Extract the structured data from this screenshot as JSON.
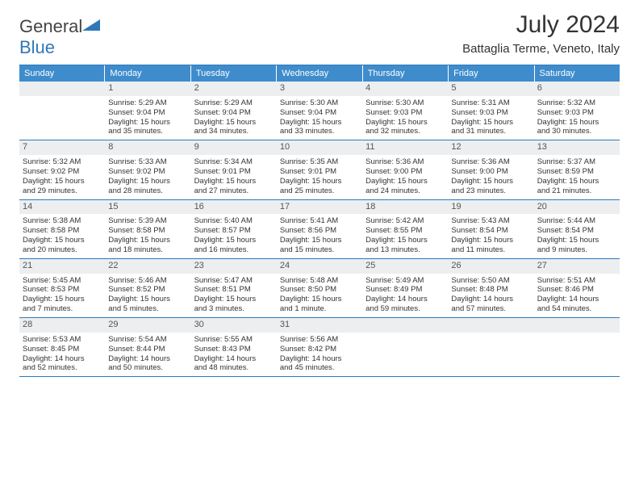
{
  "logo": {
    "text1": "General",
    "text2": "Blue",
    "color1": "#555",
    "color2": "#2f78b8"
  },
  "title": "July 2024",
  "location": "Battaglia Terme, Veneto, Italy",
  "colors": {
    "headerBg": "#3e8ccc",
    "border": "#2c7bbf",
    "dayNumBg": "#eceeef"
  },
  "weekdays": [
    "Sunday",
    "Monday",
    "Tuesday",
    "Wednesday",
    "Thursday",
    "Friday",
    "Saturday"
  ],
  "weeks": [
    [
      {
        "n": "",
        "sunrise": "",
        "sunset": "",
        "daylight1": "",
        "daylight2": ""
      },
      {
        "n": "1",
        "sunrise": "Sunrise: 5:29 AM",
        "sunset": "Sunset: 9:04 PM",
        "daylight1": "Daylight: 15 hours",
        "daylight2": "and 35 minutes."
      },
      {
        "n": "2",
        "sunrise": "Sunrise: 5:29 AM",
        "sunset": "Sunset: 9:04 PM",
        "daylight1": "Daylight: 15 hours",
        "daylight2": "and 34 minutes."
      },
      {
        "n": "3",
        "sunrise": "Sunrise: 5:30 AM",
        "sunset": "Sunset: 9:04 PM",
        "daylight1": "Daylight: 15 hours",
        "daylight2": "and 33 minutes."
      },
      {
        "n": "4",
        "sunrise": "Sunrise: 5:30 AM",
        "sunset": "Sunset: 9:03 PM",
        "daylight1": "Daylight: 15 hours",
        "daylight2": "and 32 minutes."
      },
      {
        "n": "5",
        "sunrise": "Sunrise: 5:31 AM",
        "sunset": "Sunset: 9:03 PM",
        "daylight1": "Daylight: 15 hours",
        "daylight2": "and 31 minutes."
      },
      {
        "n": "6",
        "sunrise": "Sunrise: 5:32 AM",
        "sunset": "Sunset: 9:03 PM",
        "daylight1": "Daylight: 15 hours",
        "daylight2": "and 30 minutes."
      }
    ],
    [
      {
        "n": "7",
        "sunrise": "Sunrise: 5:32 AM",
        "sunset": "Sunset: 9:02 PM",
        "daylight1": "Daylight: 15 hours",
        "daylight2": "and 29 minutes."
      },
      {
        "n": "8",
        "sunrise": "Sunrise: 5:33 AM",
        "sunset": "Sunset: 9:02 PM",
        "daylight1": "Daylight: 15 hours",
        "daylight2": "and 28 minutes."
      },
      {
        "n": "9",
        "sunrise": "Sunrise: 5:34 AM",
        "sunset": "Sunset: 9:01 PM",
        "daylight1": "Daylight: 15 hours",
        "daylight2": "and 27 minutes."
      },
      {
        "n": "10",
        "sunrise": "Sunrise: 5:35 AM",
        "sunset": "Sunset: 9:01 PM",
        "daylight1": "Daylight: 15 hours",
        "daylight2": "and 25 minutes."
      },
      {
        "n": "11",
        "sunrise": "Sunrise: 5:36 AM",
        "sunset": "Sunset: 9:00 PM",
        "daylight1": "Daylight: 15 hours",
        "daylight2": "and 24 minutes."
      },
      {
        "n": "12",
        "sunrise": "Sunrise: 5:36 AM",
        "sunset": "Sunset: 9:00 PM",
        "daylight1": "Daylight: 15 hours",
        "daylight2": "and 23 minutes."
      },
      {
        "n": "13",
        "sunrise": "Sunrise: 5:37 AM",
        "sunset": "Sunset: 8:59 PM",
        "daylight1": "Daylight: 15 hours",
        "daylight2": "and 21 minutes."
      }
    ],
    [
      {
        "n": "14",
        "sunrise": "Sunrise: 5:38 AM",
        "sunset": "Sunset: 8:58 PM",
        "daylight1": "Daylight: 15 hours",
        "daylight2": "and 20 minutes."
      },
      {
        "n": "15",
        "sunrise": "Sunrise: 5:39 AM",
        "sunset": "Sunset: 8:58 PM",
        "daylight1": "Daylight: 15 hours",
        "daylight2": "and 18 minutes."
      },
      {
        "n": "16",
        "sunrise": "Sunrise: 5:40 AM",
        "sunset": "Sunset: 8:57 PM",
        "daylight1": "Daylight: 15 hours",
        "daylight2": "and 16 minutes."
      },
      {
        "n": "17",
        "sunrise": "Sunrise: 5:41 AM",
        "sunset": "Sunset: 8:56 PM",
        "daylight1": "Daylight: 15 hours",
        "daylight2": "and 15 minutes."
      },
      {
        "n": "18",
        "sunrise": "Sunrise: 5:42 AM",
        "sunset": "Sunset: 8:55 PM",
        "daylight1": "Daylight: 15 hours",
        "daylight2": "and 13 minutes."
      },
      {
        "n": "19",
        "sunrise": "Sunrise: 5:43 AM",
        "sunset": "Sunset: 8:54 PM",
        "daylight1": "Daylight: 15 hours",
        "daylight2": "and 11 minutes."
      },
      {
        "n": "20",
        "sunrise": "Sunrise: 5:44 AM",
        "sunset": "Sunset: 8:54 PM",
        "daylight1": "Daylight: 15 hours",
        "daylight2": "and 9 minutes."
      }
    ],
    [
      {
        "n": "21",
        "sunrise": "Sunrise: 5:45 AM",
        "sunset": "Sunset: 8:53 PM",
        "daylight1": "Daylight: 15 hours",
        "daylight2": "and 7 minutes."
      },
      {
        "n": "22",
        "sunrise": "Sunrise: 5:46 AM",
        "sunset": "Sunset: 8:52 PM",
        "daylight1": "Daylight: 15 hours",
        "daylight2": "and 5 minutes."
      },
      {
        "n": "23",
        "sunrise": "Sunrise: 5:47 AM",
        "sunset": "Sunset: 8:51 PM",
        "daylight1": "Daylight: 15 hours",
        "daylight2": "and 3 minutes."
      },
      {
        "n": "24",
        "sunrise": "Sunrise: 5:48 AM",
        "sunset": "Sunset: 8:50 PM",
        "daylight1": "Daylight: 15 hours",
        "daylight2": "and 1 minute."
      },
      {
        "n": "25",
        "sunrise": "Sunrise: 5:49 AM",
        "sunset": "Sunset: 8:49 PM",
        "daylight1": "Daylight: 14 hours",
        "daylight2": "and 59 minutes."
      },
      {
        "n": "26",
        "sunrise": "Sunrise: 5:50 AM",
        "sunset": "Sunset: 8:48 PM",
        "daylight1": "Daylight: 14 hours",
        "daylight2": "and 57 minutes."
      },
      {
        "n": "27",
        "sunrise": "Sunrise: 5:51 AM",
        "sunset": "Sunset: 8:46 PM",
        "daylight1": "Daylight: 14 hours",
        "daylight2": "and 54 minutes."
      }
    ],
    [
      {
        "n": "28",
        "sunrise": "Sunrise: 5:53 AM",
        "sunset": "Sunset: 8:45 PM",
        "daylight1": "Daylight: 14 hours",
        "daylight2": "and 52 minutes."
      },
      {
        "n": "29",
        "sunrise": "Sunrise: 5:54 AM",
        "sunset": "Sunset: 8:44 PM",
        "daylight1": "Daylight: 14 hours",
        "daylight2": "and 50 minutes."
      },
      {
        "n": "30",
        "sunrise": "Sunrise: 5:55 AM",
        "sunset": "Sunset: 8:43 PM",
        "daylight1": "Daylight: 14 hours",
        "daylight2": "and 48 minutes."
      },
      {
        "n": "31",
        "sunrise": "Sunrise: 5:56 AM",
        "sunset": "Sunset: 8:42 PM",
        "daylight1": "Daylight: 14 hours",
        "daylight2": "and 45 minutes."
      },
      {
        "n": "",
        "sunrise": "",
        "sunset": "",
        "daylight1": "",
        "daylight2": ""
      },
      {
        "n": "",
        "sunrise": "",
        "sunset": "",
        "daylight1": "",
        "daylight2": ""
      },
      {
        "n": "",
        "sunrise": "",
        "sunset": "",
        "daylight1": "",
        "daylight2": ""
      }
    ]
  ]
}
